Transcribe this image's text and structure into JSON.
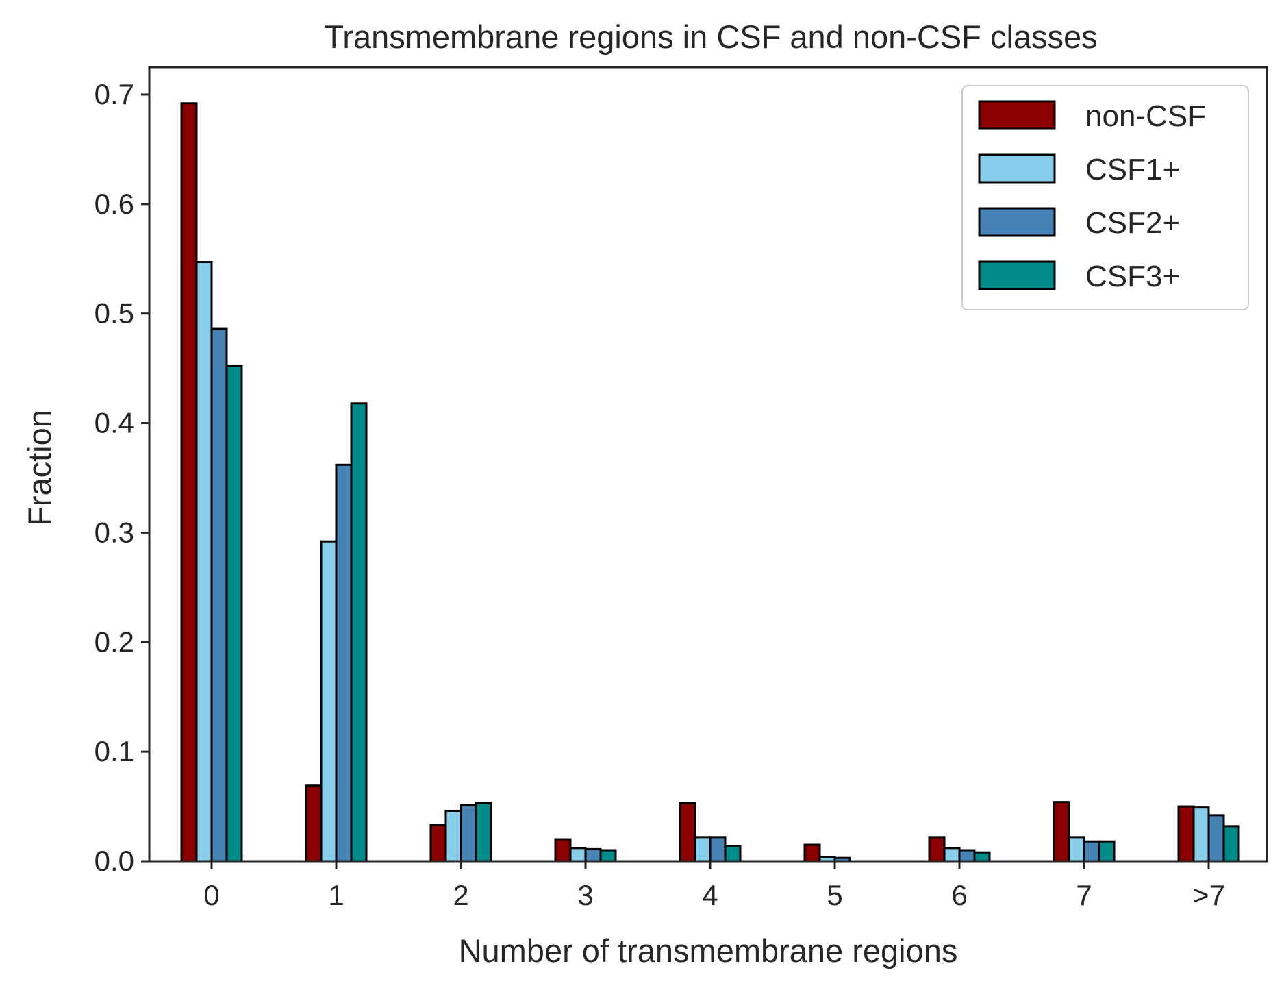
{
  "chart_data": {
    "type": "bar",
    "title": "Transmembrane regions in CSF and non-CSF classes",
    "xlabel": "Number of transmembrane regions",
    "ylabel": "Fraction",
    "categories": [
      "0",
      "1",
      "2",
      "3",
      "4",
      "5",
      "6",
      "7",
      ">7"
    ],
    "ylim": [
      0,
      0.725
    ],
    "yticks": [
      "0.0",
      "0.1",
      "0.2",
      "0.3",
      "0.4",
      "0.5",
      "0.6",
      "0.7"
    ],
    "grid": false,
    "legend_position": "top-right",
    "series": [
      {
        "name": "non-CSF",
        "color": "#8b0000",
        "values": [
          0.692,
          0.069,
          0.033,
          0.02,
          0.053,
          0.015,
          0.022,
          0.054,
          0.05
        ]
      },
      {
        "name": "CSF1+",
        "color": "#87ceeb",
        "values": [
          0.547,
          0.292,
          0.046,
          0.012,
          0.022,
          0.004,
          0.012,
          0.022,
          0.049
        ]
      },
      {
        "name": "CSF2+",
        "color": "#4682b4",
        "values": [
          0.486,
          0.362,
          0.051,
          0.011,
          0.022,
          0.003,
          0.01,
          0.018,
          0.042
        ]
      },
      {
        "name": "CSF3+",
        "color": "#008b8b",
        "values": [
          0.452,
          0.418,
          0.053,
          0.01,
          0.014,
          0.0,
          0.008,
          0.018,
          0.032
        ]
      }
    ]
  }
}
